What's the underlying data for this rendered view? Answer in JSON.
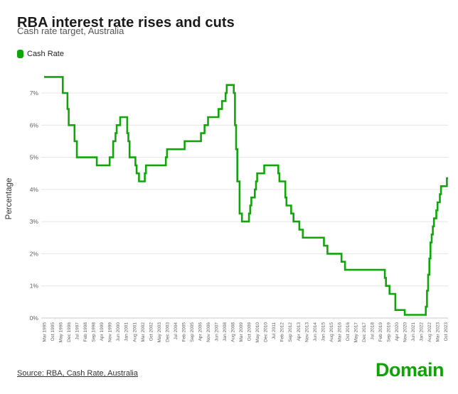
{
  "header": {
    "title": "RBA interest rate rises and cuts",
    "subtitle": "Cash rate target, Australia"
  },
  "legend": {
    "label": "Cash Rate"
  },
  "footer": {
    "source": "Source: RBA, Cash Rate, Australia",
    "brand": "Domain"
  },
  "colors": {
    "line": "#12A50B",
    "brand": "#0CA400",
    "grid": "#E4E4E4",
    "axis": "#C9C9C9",
    "tick_text": "#5F5F5F"
  },
  "chart_data": {
    "type": "line",
    "step": true,
    "title": "RBA interest rate rises and cuts",
    "subtitle": "Cash rate target, Australia",
    "xlabel": "",
    "ylabel": "Percentage",
    "ylim": [
      0,
      7.5
    ],
    "grid": "horizontal",
    "legend_position": "top-left",
    "y_ticks": [
      "0%",
      "1%",
      "2%",
      "3%",
      "4%",
      "5%",
      "6%",
      "7%"
    ],
    "x_start": "1995-03",
    "x_end": "2023-12",
    "x_ticks": [
      "Mar 1995",
      "Oct 1995",
      "May 1996",
      "Dec 1996",
      "Jul 1997",
      "Feb 1998",
      "Sep 1998",
      "Apr 1999",
      "Nov 1999",
      "Jun 2000",
      "Jan 2001",
      "Aug 2001",
      "Mar 2002",
      "Oct 2002",
      "May 2003",
      "Dec 2003",
      "Jul 2004",
      "Feb 2005",
      "Sep 2005",
      "Apr 2006",
      "Nov 2006",
      "Jun 2007",
      "Jan 2008",
      "Aug 2008",
      "Mar 2009",
      "Oct 2009",
      "May 2010",
      "Dec 2010",
      "Jul 2011",
      "Feb 2012",
      "Sep 2012",
      "Apr 2013",
      "Nov 2013",
      "Jun 2014",
      "Jan 2015",
      "Aug 2015",
      "Mar 2016",
      "Oct 2016",
      "May 2017",
      "Dec 2017",
      "Jul 2018",
      "Feb 2019",
      "Sep 2019",
      "Apr 2020",
      "Nov 2020",
      "Jun 2021",
      "Jan 2022",
      "Aug 2022",
      "Mar 2023",
      "Oct 2023"
    ],
    "series": [
      {
        "name": "Cash Rate",
        "unit": "%",
        "changes": [
          [
            "1995-03",
            7.5
          ],
          [
            "1996-07",
            7
          ],
          [
            "1996-11",
            6.5
          ],
          [
            "1996-12",
            6
          ],
          [
            "1997-05",
            5.5
          ],
          [
            "1997-07",
            5
          ],
          [
            "1998-12",
            4.75
          ],
          [
            "1999-11",
            5
          ],
          [
            "2000-02",
            5.5
          ],
          [
            "2000-04",
            5.75
          ],
          [
            "2000-05",
            6
          ],
          [
            "2000-08",
            6.25
          ],
          [
            "2001-02",
            5.75
          ],
          [
            "2001-03",
            5.5
          ],
          [
            "2001-04",
            5
          ],
          [
            "2001-09",
            4.75
          ],
          [
            "2001-10",
            4.5
          ],
          [
            "2001-12",
            4.25
          ],
          [
            "2002-05",
            4.5
          ],
          [
            "2002-06",
            4.75
          ],
          [
            "2003-11",
            5
          ],
          [
            "2003-12",
            5.25
          ],
          [
            "2005-03",
            5.5
          ],
          [
            "2006-05",
            5.75
          ],
          [
            "2006-08",
            6
          ],
          [
            "2006-11",
            6.25
          ],
          [
            "2007-08",
            6.5
          ],
          [
            "2007-11",
            6.75
          ],
          [
            "2008-02",
            7
          ],
          [
            "2008-03",
            7.25
          ],
          [
            "2008-09",
            7
          ],
          [
            "2008-10",
            6
          ],
          [
            "2008-11",
            5.25
          ],
          [
            "2008-12",
            4.25
          ],
          [
            "2009-02",
            3.25
          ],
          [
            "2009-04",
            3
          ],
          [
            "2009-10",
            3.25
          ],
          [
            "2009-11",
            3.5
          ],
          [
            "2009-12",
            3.75
          ],
          [
            "2010-03",
            4
          ],
          [
            "2010-04",
            4.25
          ],
          [
            "2010-05",
            4.5
          ],
          [
            "2010-11",
            4.75
          ],
          [
            "2011-11",
            4.5
          ],
          [
            "2011-12",
            4.25
          ],
          [
            "2012-05",
            3.75
          ],
          [
            "2012-06",
            3.5
          ],
          [
            "2012-10",
            3.25
          ],
          [
            "2012-12",
            3
          ],
          [
            "2013-05",
            2.75
          ],
          [
            "2013-08",
            2.5
          ],
          [
            "2015-02",
            2.25
          ],
          [
            "2015-05",
            2
          ],
          [
            "2016-05",
            1.75
          ],
          [
            "2016-08",
            1.5
          ],
          [
            "2019-06",
            1.25
          ],
          [
            "2019-07",
            1
          ],
          [
            "2019-10",
            0.75
          ],
          [
            "2020-03",
            0.25
          ],
          [
            "2020-11",
            0.1
          ],
          [
            "2022-05",
            0.35
          ],
          [
            "2022-06",
            0.85
          ],
          [
            "2022-07",
            1.35
          ],
          [
            "2022-08",
            1.85
          ],
          [
            "2022-09",
            2.35
          ],
          [
            "2022-10",
            2.6
          ],
          [
            "2022-11",
            2.85
          ],
          [
            "2022-12",
            3.1
          ],
          [
            "2023-02",
            3.35
          ],
          [
            "2023-03",
            3.6
          ],
          [
            "2023-05",
            3.85
          ],
          [
            "2023-06",
            4.1
          ],
          [
            "2023-11",
            4.35
          ]
        ]
      }
    ]
  }
}
